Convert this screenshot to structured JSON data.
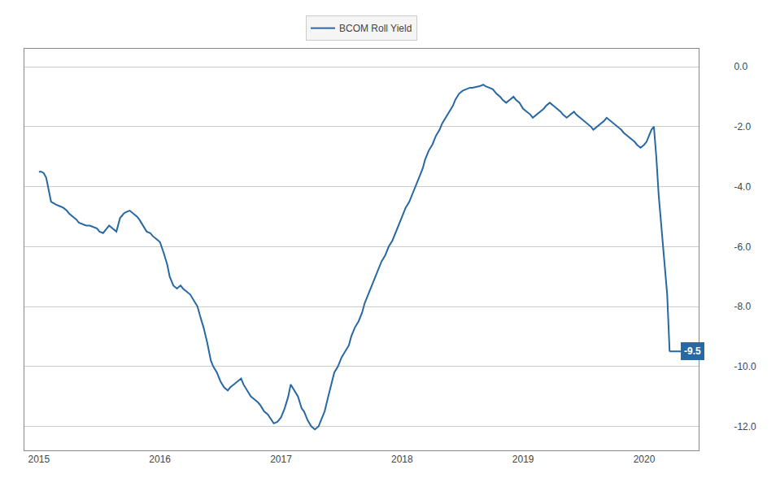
{
  "chart_data": {
    "type": "line",
    "legend": "top",
    "grid": true,
    "x": [
      2015.0,
      2015.02,
      2015.04,
      2015.06,
      2015.08,
      2015.1,
      2015.12,
      2015.14,
      2015.17,
      2015.2,
      2015.23,
      2015.25,
      2015.28,
      2015.31,
      2015.33,
      2015.36,
      2015.39,
      2015.42,
      2015.45,
      2015.48,
      2015.5,
      2015.53,
      2015.56,
      2015.58,
      2015.61,
      2015.64,
      2015.67,
      2015.7,
      2015.72,
      2015.75,
      2015.78,
      2015.81,
      2015.83,
      2015.86,
      2015.89,
      2015.92,
      2015.94,
      2015.97,
      2016.0,
      2016.03,
      2016.06,
      2016.08,
      2016.11,
      2016.14,
      2016.17,
      2016.19,
      2016.22,
      2016.25,
      2016.28,
      2016.31,
      2016.33,
      2016.36,
      2016.39,
      2016.42,
      2016.44,
      2016.47,
      2016.5,
      2016.53,
      2016.56,
      2016.58,
      2016.61,
      2016.64,
      2016.67,
      2016.69,
      2016.72,
      2016.75,
      2016.78,
      2016.81,
      2016.83,
      2016.86,
      2016.89,
      2016.92,
      2016.94,
      2016.97,
      2017.0,
      2017.03,
      2017.06,
      2017.08,
      2017.11,
      2017.14,
      2017.17,
      2017.19,
      2017.22,
      2017.25,
      2017.28,
      2017.31,
      2017.33,
      2017.36,
      2017.39,
      2017.42,
      2017.44,
      2017.47,
      2017.5,
      2017.53,
      2017.56,
      2017.58,
      2017.61,
      2017.64,
      2017.67,
      2017.69,
      2017.72,
      2017.75,
      2017.78,
      2017.81,
      2017.83,
      2017.86,
      2017.89,
      2017.92,
      2017.94,
      2017.97,
      2018.0,
      2018.03,
      2018.06,
      2018.08,
      2018.11,
      2018.14,
      2018.17,
      2018.19,
      2018.22,
      2018.25,
      2018.28,
      2018.31,
      2018.33,
      2018.36,
      2018.39,
      2018.42,
      2018.44,
      2018.47,
      2018.5,
      2018.53,
      2018.56,
      2018.58,
      2018.61,
      2018.64,
      2018.67,
      2018.69,
      2018.72,
      2018.75,
      2018.78,
      2018.81,
      2018.83,
      2018.86,
      2018.89,
      2018.92,
      2018.94,
      2018.97,
      2019.0,
      2019.03,
      2019.06,
      2019.08,
      2019.11,
      2019.14,
      2019.17,
      2019.19,
      2019.22,
      2019.25,
      2019.28,
      2019.31,
      2019.33,
      2019.36,
      2019.39,
      2019.42,
      2019.44,
      2019.47,
      2019.5,
      2019.53,
      2019.56,
      2019.58,
      2019.61,
      2019.64,
      2019.67,
      2019.69,
      2019.72,
      2019.75,
      2019.78,
      2019.81,
      2019.83,
      2019.86,
      2019.89,
      2019.92,
      2019.94,
      2019.97,
      2020.0,
      2020.02,
      2020.04,
      2020.06,
      2020.08,
      2020.1,
      2020.12,
      2020.14,
      2020.17,
      2020.19,
      2020.21
    ],
    "series": [
      {
        "name": "BCOM Roll Yield",
        "color": "#2868a4",
        "values": [
          -3.5,
          -3.5,
          -3.55,
          -3.7,
          -4.1,
          -4.5,
          -4.55,
          -4.6,
          -4.65,
          -4.7,
          -4.8,
          -4.9,
          -5.0,
          -5.1,
          -5.2,
          -5.25,
          -5.3,
          -5.3,
          -5.35,
          -5.4,
          -5.5,
          -5.55,
          -5.4,
          -5.3,
          -5.4,
          -5.5,
          -5.05,
          -4.9,
          -4.85,
          -4.8,
          -4.9,
          -5.0,
          -5.1,
          -5.3,
          -5.5,
          -5.55,
          -5.65,
          -5.75,
          -5.85,
          -6.2,
          -6.6,
          -7.0,
          -7.3,
          -7.4,
          -7.3,
          -7.4,
          -7.5,
          -7.6,
          -7.8,
          -8.0,
          -8.3,
          -8.7,
          -9.2,
          -9.8,
          -10.0,
          -10.2,
          -10.5,
          -10.7,
          -10.8,
          -10.7,
          -10.6,
          -10.5,
          -10.4,
          -10.6,
          -10.8,
          -11.0,
          -11.1,
          -11.2,
          -11.3,
          -11.5,
          -11.6,
          -11.8,
          -11.9,
          -11.85,
          -11.7,
          -11.4,
          -11.0,
          -10.6,
          -10.8,
          -11.0,
          -11.4,
          -11.5,
          -11.8,
          -12.0,
          -12.1,
          -12.0,
          -11.8,
          -11.5,
          -11.0,
          -10.5,
          -10.2,
          -10.0,
          -9.7,
          -9.5,
          -9.3,
          -9.0,
          -8.7,
          -8.5,
          -8.2,
          -7.9,
          -7.6,
          -7.3,
          -7.0,
          -6.7,
          -6.5,
          -6.3,
          -6.0,
          -5.8,
          -5.6,
          -5.3,
          -5.0,
          -4.7,
          -4.5,
          -4.3,
          -4.0,
          -3.7,
          -3.4,
          -3.1,
          -2.8,
          -2.6,
          -2.3,
          -2.1,
          -1.9,
          -1.7,
          -1.5,
          -1.3,
          -1.1,
          -0.9,
          -0.8,
          -0.75,
          -0.7,
          -0.7,
          -0.68,
          -0.65,
          -0.6,
          -0.65,
          -0.7,
          -0.75,
          -0.9,
          -1.0,
          -1.1,
          -1.2,
          -1.1,
          -1.0,
          -1.1,
          -1.2,
          -1.4,
          -1.5,
          -1.6,
          -1.7,
          -1.6,
          -1.5,
          -1.4,
          -1.3,
          -1.2,
          -1.3,
          -1.4,
          -1.5,
          -1.6,
          -1.7,
          -1.6,
          -1.5,
          -1.6,
          -1.7,
          -1.8,
          -1.9,
          -2.0,
          -2.1,
          -2.0,
          -1.9,
          -1.8,
          -1.7,
          -1.8,
          -1.9,
          -2.0,
          -2.1,
          -2.2,
          -2.3,
          -2.4,
          -2.5,
          -2.6,
          -2.7,
          -2.6,
          -2.5,
          -2.3,
          -2.1,
          -2.0,
          -3.0,
          -4.3,
          -5.2,
          -6.5,
          -7.6,
          -9.5
        ]
      }
    ],
    "annotations": [
      {
        "text": "-9.5",
        "color": "#2868a4"
      }
    ],
    "xlim": [
      2014.88,
      2020.45
    ],
    "xticks": [
      2015,
      2016,
      2017,
      2018,
      2019,
      2020
    ],
    "ylim": [
      -12.8,
      0.6
    ],
    "yticks": [
      {
        "value": 0.0,
        "label": "0.0"
      },
      {
        "value": -2.0,
        "label": "-2.0"
      },
      {
        "value": -4.0,
        "label": "-4.0"
      },
      {
        "value": -6.0,
        "label": "-6.0"
      },
      {
        "value": -8.0,
        "label": "-8.0"
      },
      {
        "value": -10.0,
        "label": "-10.0"
      },
      {
        "value": -12.0,
        "label": "-12.0"
      }
    ]
  }
}
